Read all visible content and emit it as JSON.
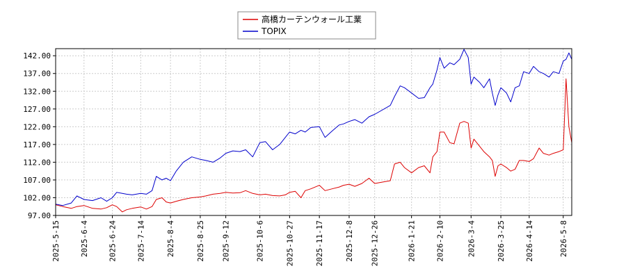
{
  "chart_data": {
    "type": "line",
    "title": "",
    "xlabel": "",
    "ylabel": "",
    "ylim": [
      97.0,
      144.0
    ],
    "grid": true,
    "legend_position": "top-center",
    "y_ticks": [
      "97.00",
      "102.00",
      "107.00",
      "112.00",
      "117.00",
      "122.00",
      "127.00",
      "132.00",
      "137.00",
      "142.00"
    ],
    "x_ticks": [
      "2025-5-15",
      "2025-6-4",
      "2025-6-24",
      "2025-7-14",
      "2025-8-4",
      "2025-8-25",
      "2025-9-12",
      "2025-10-6",
      "2025-10-27",
      "2025-11-17",
      "2025-12-8",
      "2025-12-26",
      "2026-1-21",
      "2026-2-10",
      "2026-3-4",
      "2026-3-25",
      "2026-4-14",
      "2026-5-8"
    ],
    "series": [
      {
        "name": "高橋カーテンウォール工業",
        "color": "#dd0000",
        "points": [
          [
            "2025-5-15",
            100.0
          ],
          [
            "2025-5-20",
            99.5
          ],
          [
            "2025-5-26",
            99.0
          ],
          [
            "2025-5-30",
            99.5
          ],
          [
            "2025-6-4",
            99.8
          ],
          [
            "2025-6-10",
            99.0
          ],
          [
            "2025-6-16",
            98.8
          ],
          [
            "2025-6-20",
            99.2
          ],
          [
            "2025-6-24",
            100.0
          ],
          [
            "2025-6-27",
            99.5
          ],
          [
            "2025-7-1",
            98.0
          ],
          [
            "2025-7-4",
            98.6
          ],
          [
            "2025-7-8",
            99.0
          ],
          [
            "2025-7-14",
            99.4
          ],
          [
            "2025-7-18",
            98.8
          ],
          [
            "2025-7-22",
            99.5
          ],
          [
            "2025-7-25",
            101.5
          ],
          [
            "2025-7-29",
            102.0
          ],
          [
            "2025-8-1",
            100.8
          ],
          [
            "2025-8-4",
            100.5
          ],
          [
            "2025-8-8",
            101.0
          ],
          [
            "2025-8-13",
            101.5
          ],
          [
            "2025-8-19",
            102.0
          ],
          [
            "2025-8-25",
            102.2
          ],
          [
            "2025-8-29",
            102.5
          ],
          [
            "2025-9-3",
            103.0
          ],
          [
            "2025-9-8",
            103.2
          ],
          [
            "2025-9-12",
            103.5
          ],
          [
            "2025-9-17",
            103.3
          ],
          [
            "2025-9-22",
            103.4
          ],
          [
            "2025-9-26",
            104.0
          ],
          [
            "2025-10-1",
            103.2
          ],
          [
            "2025-10-6",
            102.8
          ],
          [
            "2025-10-10",
            103.0
          ],
          [
            "2025-10-15",
            102.6
          ],
          [
            "2025-10-20",
            102.5
          ],
          [
            "2025-10-24",
            102.8
          ],
          [
            "2025-10-27",
            103.5
          ],
          [
            "2025-10-31",
            103.8
          ],
          [
            "2025-11-4",
            102.0
          ],
          [
            "2025-11-7",
            104.0
          ],
          [
            "2025-11-11",
            104.5
          ],
          [
            "2025-11-17",
            105.5
          ],
          [
            "2025-11-21",
            104.0
          ],
          [
            "2025-11-26",
            104.5
          ],
          [
            "2025-12-1",
            105.0
          ],
          [
            "2025-12-4",
            105.5
          ],
          [
            "2025-12-8",
            105.8
          ],
          [
            "2025-12-12",
            105.2
          ],
          [
            "2025-12-17",
            106.0
          ],
          [
            "2025-12-22",
            107.5
          ],
          [
            "2025-12-26",
            106.0
          ],
          [
            "2026-1-6",
            106.8
          ],
          [
            "2026-1-9",
            111.5
          ],
          [
            "2026-1-13",
            112.0
          ],
          [
            "2026-1-16",
            110.5
          ],
          [
            "2026-1-21",
            109.0
          ],
          [
            "2026-1-26",
            110.5
          ],
          [
            "2026-1-30",
            111.0
          ],
          [
            "2026-2-3",
            109.0
          ],
          [
            "2026-2-5",
            113.5
          ],
          [
            "2026-2-8",
            115.0
          ],
          [
            "2026-2-10",
            120.5
          ],
          [
            "2026-2-13",
            120.5
          ],
          [
            "2026-2-17",
            117.5
          ],
          [
            "2026-2-20",
            117.2
          ],
          [
            "2026-2-24",
            123.0
          ],
          [
            "2026-2-27",
            123.5
          ],
          [
            "2026-3-2",
            123.0
          ],
          [
            "2026-3-4",
            116.0
          ],
          [
            "2026-3-6",
            118.5
          ],
          [
            "2026-3-10",
            116.5
          ],
          [
            "2026-3-13",
            115.0
          ],
          [
            "2026-3-17",
            113.5
          ],
          [
            "2026-3-19",
            112.5
          ],
          [
            "2026-3-21",
            108.0
          ],
          [
            "2026-3-23",
            111.0
          ],
          [
            "2026-3-25",
            111.5
          ],
          [
            "2026-3-29",
            110.5
          ],
          [
            "2026-4-1",
            109.5
          ],
          [
            "2026-4-4",
            110.0
          ],
          [
            "2026-4-7",
            112.5
          ],
          [
            "2026-4-10",
            112.5
          ],
          [
            "2026-4-14",
            112.2
          ],
          [
            "2026-4-17",
            113.0
          ],
          [
            "2026-4-21",
            116.0
          ],
          [
            "2026-4-24",
            114.5
          ],
          [
            "2026-4-28",
            114.0
          ],
          [
            "2026-5-1",
            114.5
          ],
          [
            "2026-5-5",
            115.0
          ],
          [
            "2026-5-8",
            115.5
          ],
          [
            "2026-5-10",
            135.5
          ],
          [
            "2026-5-12",
            122.0
          ],
          [
            "2026-5-14",
            117.5
          ]
        ]
      },
      {
        "name": "TOPIX",
        "color": "#0000cc",
        "points": [
          [
            "2025-5-15",
            100.2
          ],
          [
            "2025-5-20",
            99.8
          ],
          [
            "2025-5-26",
            100.5
          ],
          [
            "2025-5-30",
            102.5
          ],
          [
            "2025-6-4",
            101.5
          ],
          [
            "2025-6-10",
            101.2
          ],
          [
            "2025-6-16",
            102.0
          ],
          [
            "2025-6-20",
            101.0
          ],
          [
            "2025-6-24",
            102.0
          ],
          [
            "2025-6-27",
            103.5
          ],
          [
            "2025-7-1",
            103.2
          ],
          [
            "2025-7-4",
            103.0
          ],
          [
            "2025-7-8",
            102.8
          ],
          [
            "2025-7-14",
            103.2
          ],
          [
            "2025-7-18",
            103.0
          ],
          [
            "2025-7-22",
            104.0
          ],
          [
            "2025-7-25",
            108.0
          ],
          [
            "2025-7-29",
            107.0
          ],
          [
            "2025-8-1",
            107.5
          ],
          [
            "2025-8-4",
            106.8
          ],
          [
            "2025-8-8",
            109.5
          ],
          [
            "2025-8-13",
            112.0
          ],
          [
            "2025-8-19",
            113.5
          ],
          [
            "2025-8-25",
            112.8
          ],
          [
            "2025-8-29",
            112.5
          ],
          [
            "2025-9-3",
            112.0
          ],
          [
            "2025-9-8",
            113.2
          ],
          [
            "2025-9-12",
            114.5
          ],
          [
            "2025-9-17",
            115.2
          ],
          [
            "2025-9-22",
            115.0
          ],
          [
            "2025-9-26",
            115.5
          ],
          [
            "2025-10-1",
            113.5
          ],
          [
            "2025-10-6",
            117.5
          ],
          [
            "2025-10-10",
            117.8
          ],
          [
            "2025-10-15",
            115.5
          ],
          [
            "2025-10-20",
            117.0
          ],
          [
            "2025-10-24",
            119.0
          ],
          [
            "2025-10-27",
            120.5
          ],
          [
            "2025-10-31",
            120.0
          ],
          [
            "2025-11-4",
            121.0
          ],
          [
            "2025-11-7",
            120.5
          ],
          [
            "2025-11-11",
            121.8
          ],
          [
            "2025-11-17",
            122.0
          ],
          [
            "2025-11-21",
            119.0
          ],
          [
            "2025-11-26",
            120.8
          ],
          [
            "2025-12-1",
            122.5
          ],
          [
            "2025-12-4",
            122.8
          ],
          [
            "2025-12-8",
            123.5
          ],
          [
            "2025-12-12",
            124.0
          ],
          [
            "2025-12-17",
            123.0
          ],
          [
            "2025-12-22",
            124.8
          ],
          [
            "2025-12-26",
            125.5
          ],
          [
            "2026-1-6",
            128.0
          ],
          [
            "2026-1-9",
            130.5
          ],
          [
            "2026-1-13",
            133.5
          ],
          [
            "2026-1-16",
            133.0
          ],
          [
            "2026-1-21",
            131.5
          ],
          [
            "2026-1-26",
            130.0
          ],
          [
            "2026-1-30",
            130.2
          ],
          [
            "2026-2-3",
            133.0
          ],
          [
            "2026-2-5",
            134.0
          ],
          [
            "2026-2-8",
            138.0
          ],
          [
            "2026-2-10",
            141.5
          ],
          [
            "2026-2-13",
            138.5
          ],
          [
            "2026-2-17",
            140.0
          ],
          [
            "2026-2-20",
            139.5
          ],
          [
            "2026-2-24",
            141.0
          ],
          [
            "2026-2-27",
            143.8
          ],
          [
            "2026-3-2",
            141.5
          ],
          [
            "2026-3-4",
            134.0
          ],
          [
            "2026-3-6",
            136.0
          ],
          [
            "2026-3-10",
            134.5
          ],
          [
            "2026-3-13",
            133.0
          ],
          [
            "2026-3-17",
            135.5
          ],
          [
            "2026-3-19",
            131.5
          ],
          [
            "2026-3-21",
            128.0
          ],
          [
            "2026-3-23",
            131.0
          ],
          [
            "2026-3-25",
            133.0
          ],
          [
            "2026-3-29",
            131.5
          ],
          [
            "2026-4-1",
            129.0
          ],
          [
            "2026-4-4",
            133.0
          ],
          [
            "2026-4-7",
            133.5
          ],
          [
            "2026-4-10",
            137.5
          ],
          [
            "2026-4-14",
            137.0
          ],
          [
            "2026-4-17",
            139.0
          ],
          [
            "2026-4-21",
            137.5
          ],
          [
            "2026-4-24",
            137.0
          ],
          [
            "2026-4-28",
            136.0
          ],
          [
            "2026-5-1",
            137.5
          ],
          [
            "2026-5-5",
            137.0
          ],
          [
            "2026-5-8",
            140.5
          ],
          [
            "2026-5-10",
            141.0
          ],
          [
            "2026-5-12",
            142.8
          ],
          [
            "2026-5-14",
            141.0
          ]
        ]
      }
    ]
  }
}
